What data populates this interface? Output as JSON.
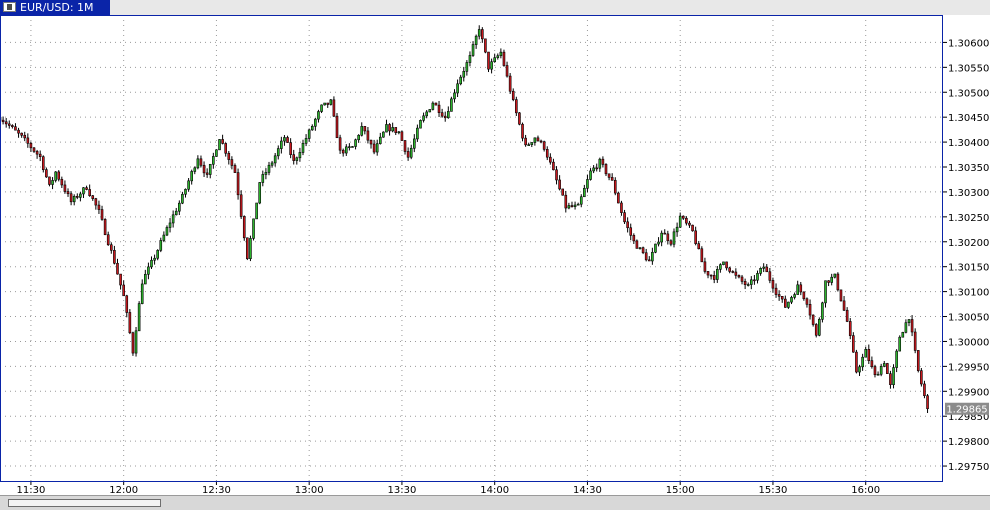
{
  "window": {
    "tab_title": "EUR/USD: 1M",
    "tab_icon": "chart-window-icon"
  },
  "colors": {
    "up": "#2cb32c",
    "down": "#c8181e",
    "grid": "#9a9a9a",
    "frame": "#0a24a8",
    "price_tag": "#8c8c8c",
    "background": "#ffffff"
  },
  "chart_data": {
    "type": "candlestick",
    "title": "EUR/USD: 1M",
    "symbol": "EUR/USD",
    "timeframe": "1M",
    "x_tick_labels": [
      "11:30",
      "12:00",
      "12:30",
      "13:00",
      "13:30",
      "14:00",
      "14:30",
      "15:00",
      "15:30",
      "16:00"
    ],
    "y_tick_labels": [
      "1.29750",
      "1.29800",
      "1.29850",
      "1.29900",
      "1.29950",
      "1.30000",
      "1.30050",
      "1.30100",
      "1.30150",
      "1.30200",
      "1.30250",
      "1.30300",
      "1.30350",
      "1.30400",
      "1.30450",
      "1.30500",
      "1.30550",
      "1.30600"
    ],
    "ylim": [
      1.2972,
      1.30655
    ],
    "time_range": [
      "11:20",
      "16:25"
    ],
    "grid": true,
    "current_price": "1.29865",
    "close_points": [
      [
        "11:20",
        1.3045
      ],
      [
        "11:27",
        1.3041
      ],
      [
        "11:33",
        1.3037
      ],
      [
        "11:36",
        1.3031
      ],
      [
        "11:38",
        1.3034
      ],
      [
        "11:43",
        1.3028
      ],
      [
        "11:48",
        1.3031
      ],
      [
        "11:52",
        1.3026
      ],
      [
        "11:57",
        1.3016
      ],
      [
        "12:00",
        1.3009
      ],
      [
        "12:03",
        1.2998
      ],
      [
        "12:06",
        1.3012
      ],
      [
        "12:10",
        1.3017
      ],
      [
        "12:15",
        1.3024
      ],
      [
        "12:19",
        1.3029
      ],
      [
        "12:24",
        1.3037
      ],
      [
        "12:27",
        1.3033
      ],
      [
        "12:31",
        1.3041
      ],
      [
        "12:36",
        1.3034
      ],
      [
        "12:40",
        1.3017
      ],
      [
        "12:42",
        1.3024
      ],
      [
        "12:44",
        1.3032
      ],
      [
        "12:48",
        1.3036
      ],
      [
        "12:52",
        1.3041
      ],
      [
        "12:55",
        1.3036
      ],
      [
        "13:00",
        1.3042
      ],
      [
        "13:04",
        1.3047
      ],
      [
        "13:07",
        1.3048
      ],
      [
        "13:10",
        1.3038
      ],
      [
        "13:14",
        1.3039
      ],
      [
        "13:17",
        1.3043
      ],
      [
        "13:21",
        1.3038
      ],
      [
        "13:25",
        1.3043
      ],
      [
        "13:29",
        1.3042
      ],
      [
        "13:32",
        1.3037
      ],
      [
        "13:36",
        1.3044
      ],
      [
        "13:40",
        1.3048
      ],
      [
        "13:44",
        1.3045
      ],
      [
        "13:48",
        1.3052
      ],
      [
        "13:52",
        1.3057
      ],
      [
        "13:55",
        1.3063
      ],
      [
        "13:58",
        1.3055
      ],
      [
        "14:02",
        1.3058
      ],
      [
        "14:06",
        1.3048
      ],
      [
        "14:10",
        1.3039
      ],
      [
        "14:13",
        1.3041
      ],
      [
        "14:16",
        1.3039
      ],
      [
        "14:19",
        1.3034
      ],
      [
        "14:23",
        1.3027
      ],
      [
        "14:27",
        1.3027
      ],
      [
        "14:31",
        1.3034
      ],
      [
        "14:34",
        1.3036
      ],
      [
        "14:38",
        1.3032
      ],
      [
        "14:42",
        1.3024
      ],
      [
        "14:45",
        1.302
      ],
      [
        "14:50",
        1.3016
      ],
      [
        "14:54",
        1.3022
      ],
      [
        "14:57",
        1.302
      ],
      [
        "15:00",
        1.3025
      ],
      [
        "15:04",
        1.3022
      ],
      [
        "15:08",
        1.3014
      ],
      [
        "15:11",
        1.3013
      ],
      [
        "15:14",
        1.3016
      ],
      [
        "15:18",
        1.3013
      ],
      [
        "15:22",
        1.3011
      ],
      [
        "15:27",
        1.3015
      ],
      [
        "15:31",
        1.301
      ],
      [
        "15:34",
        1.3007
      ],
      [
        "15:38",
        1.3011
      ],
      [
        "15:41",
        1.3008
      ],
      [
        "15:44",
        1.3001
      ],
      [
        "15:47",
        1.3012
      ],
      [
        "15:50",
        1.3013
      ],
      [
        "15:54",
        1.3004
      ],
      [
        "15:57",
        1.2994
      ],
      [
        "16:00",
        1.2998
      ],
      [
        "16:03",
        1.2993
      ],
      [
        "16:06",
        1.2996
      ],
      [
        "16:08",
        1.2991
      ],
      [
        "16:11",
        1.3001
      ],
      [
        "16:14",
        1.3005
      ],
      [
        "16:17",
        1.2994
      ],
      [
        "16:20",
        1.29865
      ]
    ]
  }
}
